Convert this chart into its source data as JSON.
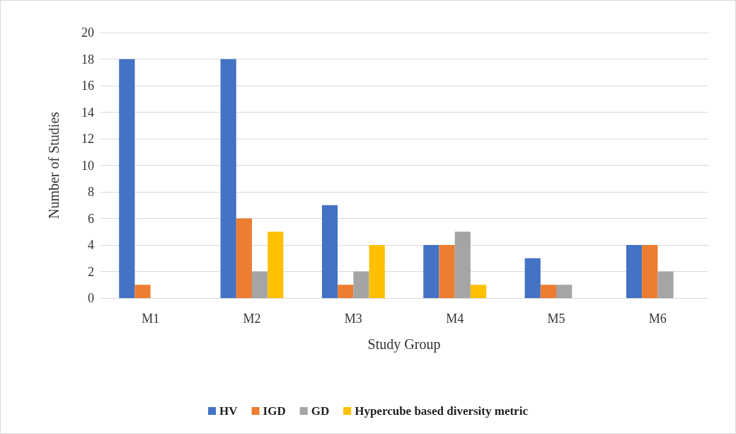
{
  "chart_data": {
    "type": "bar",
    "xlabel": "Study Group",
    "ylabel": "Number of Studies",
    "categories": [
      "M1",
      "M2",
      "M3",
      "M4",
      "M5",
      "M6"
    ],
    "series": [
      {
        "name": "HV",
        "color": "#4472c4",
        "values": [
          18,
          18,
          7,
          4,
          3,
          4
        ]
      },
      {
        "name": "IGD",
        "color": "#ed7d31",
        "values": [
          1,
          6,
          1,
          4,
          1,
          4
        ]
      },
      {
        "name": "GD",
        "color": "#a5a5a5",
        "values": [
          0,
          2,
          2,
          5,
          1,
          2
        ]
      },
      {
        "name": "Hypercube based diversity metric",
        "color": "#ffc000",
        "values": [
          0,
          5,
          4,
          1,
          0,
          0
        ]
      }
    ],
    "ylim": [
      0,
      20
    ],
    "yticks": [
      0,
      2,
      4,
      6,
      8,
      10,
      12,
      14,
      16,
      18,
      20
    ],
    "grid": "y",
    "legend": "bottom"
  }
}
